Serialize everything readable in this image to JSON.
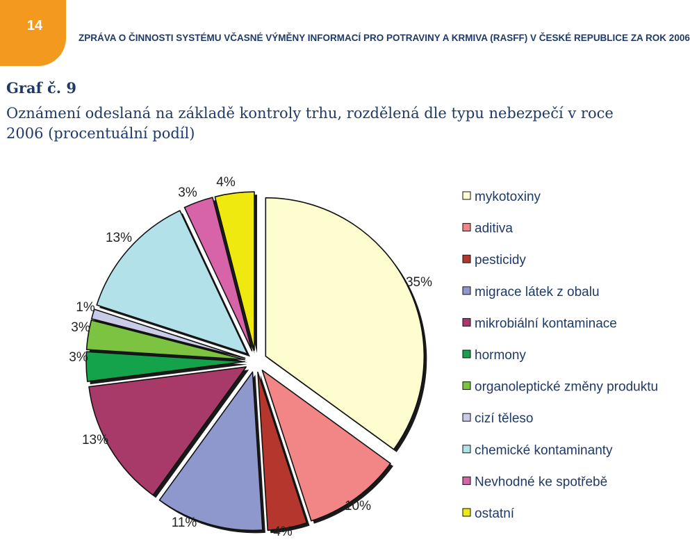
{
  "header": {
    "page_number": "14",
    "running_title": "ZPRÁVA O ČINNOSTI SYSTÉMU VČASNÉ VÝMĚNY INFORMACÍ PRO POTRAVINY A KRMIVA (RASFF) V ČESKÉ REPUBLICE ZA ROK 2006",
    "badge_color": "#f39a1e"
  },
  "figure_label": "Graf č. 9",
  "chart_data": {
    "type": "pie",
    "title": "Oznámení odeslaná  na základě kontroly trhu, rozdělená dle typu nebezpečí v roce 2006 (procentuální podíl)",
    "exploded": true,
    "start": "12 o'clock",
    "direction": "clockwise",
    "legend_position": "right",
    "slices": [
      {
        "name": "mykotoxiny",
        "value": 35,
        "label": "35%",
        "color": "#fefdcf"
      },
      {
        "name": "aditiva",
        "value": 10,
        "label": "10%",
        "color": "#f28585"
      },
      {
        "name": "pesticidy",
        "value": 4,
        "label": "4%",
        "color": "#b5362d"
      },
      {
        "name": "migrace látek z obalu",
        "value": 11,
        "label": "11%",
        "color": "#8e98cc"
      },
      {
        "name": "mikrobiální kontaminace",
        "value": 13,
        "label": "13%",
        "color": "#a83a6a"
      },
      {
        "name": "hormony",
        "value": 3,
        "label": "3%",
        "color": "#14a34a"
      },
      {
        "name": "organoleptické změny produktu",
        "value": 3,
        "label": "3%",
        "color": "#7cc342"
      },
      {
        "name": "cizí těleso",
        "value": 1,
        "label": "1%",
        "color": "#c9cce8"
      },
      {
        "name": "chemické kontaminanty",
        "value": 13,
        "label": "13%",
        "color": "#b3e1ea"
      },
      {
        "name": "Nevhodné ke spotřebě",
        "value": 3,
        "label": "3%",
        "color": "#d763a9"
      },
      {
        "name": "ostatní",
        "value": 4,
        "label": "4%",
        "color": "#efe90f"
      }
    ]
  }
}
